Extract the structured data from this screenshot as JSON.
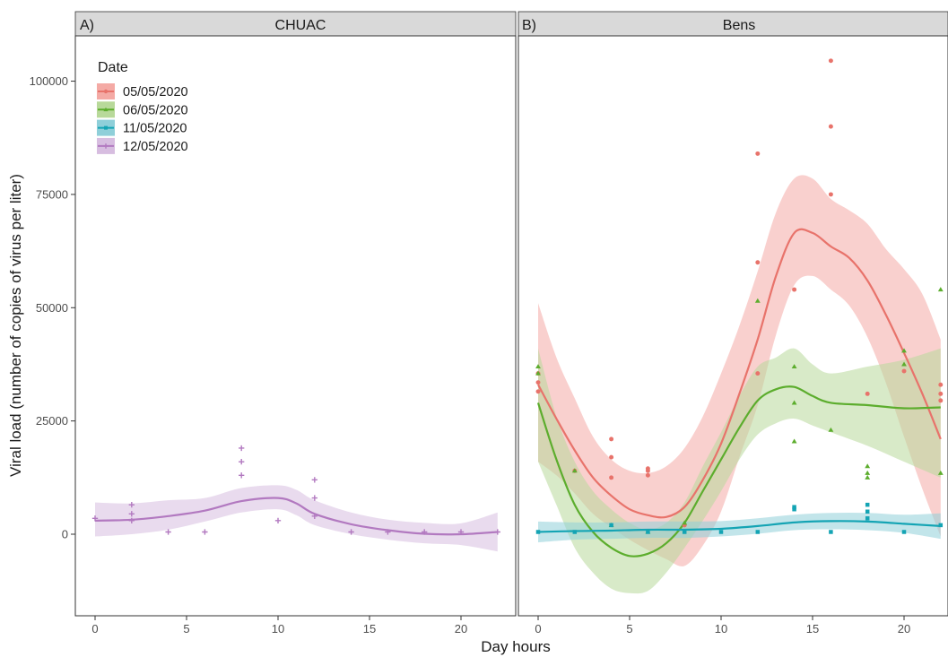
{
  "chart_data": {
    "type": "line",
    "xlabel": "Day hours",
    "ylabel": "Viral load (number of copies of virus per liter)",
    "xlim": [
      -1,
      22
    ],
    "ylim": [
      -18000,
      110000
    ],
    "x_ticks": [
      0,
      5,
      10,
      15,
      20
    ],
    "y_ticks": [
      0,
      25000,
      50000,
      75000,
      100000
    ],
    "y_tick_labels": [
      "0",
      "25000",
      "50000",
      "75000",
      "100000"
    ],
    "grid": false,
    "legend": {
      "title": "Date",
      "placement": "top-left",
      "entries": [
        {
          "label": "05/05/2020",
          "color": "#e8736b",
          "marker": "circle"
        },
        {
          "label": "06/05/2020",
          "color": "#5cad2d",
          "marker": "triangle"
        },
        {
          "label": "11/05/2020",
          "color": "#14a4b4",
          "marker": "square"
        },
        {
          "label": "12/05/2020",
          "color": "#b279c0",
          "marker": "plus"
        }
      ]
    },
    "panels": [
      {
        "tag": "A)",
        "title": "CHUAC",
        "series": [
          {
            "name": "12/05/2020",
            "color": "#b279c0",
            "fill": "#d7bde0",
            "marker": "plus",
            "points": [
              [
                0,
                3500
              ],
              [
                2,
                6500
              ],
              [
                2,
                4500
              ],
              [
                2,
                3000
              ],
              [
                4,
                500
              ],
              [
                6,
                500
              ],
              [
                8,
                19000
              ],
              [
                8,
                16000
              ],
              [
                8,
                13000
              ],
              [
                10,
                3000
              ],
              [
                12,
                12000
              ],
              [
                12,
                8000
              ],
              [
                12,
                4000
              ],
              [
                14,
                500
              ],
              [
                16,
                500
              ],
              [
                18,
                500
              ],
              [
                20,
                500
              ],
              [
                22,
                500
              ]
            ],
            "fit": [
              [
                0,
                3000
              ],
              [
                2,
                3200
              ],
              [
                4,
                4000
              ],
              [
                6,
                5200
              ],
              [
                8,
                7300
              ],
              [
                10,
                8000
              ],
              [
                11,
                6800
              ],
              [
                12,
                4500
              ],
              [
                14,
                2200
              ],
              [
                16,
                900
              ],
              [
                18,
                100
              ],
              [
                20,
                0
              ],
              [
                22,
                500
              ]
            ],
            "band": [
              [
                0,
                -500,
                7000
              ],
              [
                2,
                0,
                6800
              ],
              [
                4,
                1000,
                7500
              ],
              [
                6,
                2800,
                8000
              ],
              [
                8,
                4800,
                10200
              ],
              [
                10,
                5500,
                10800
              ],
              [
                11,
                4200,
                9800
              ],
              [
                12,
                2000,
                7500
              ],
              [
                14,
                0,
                4800
              ],
              [
                16,
                -1200,
                3200
              ],
              [
                18,
                -2000,
                2500
              ],
              [
                20,
                -2400,
                2400
              ],
              [
                22,
                -3800,
                4800
              ]
            ]
          }
        ]
      },
      {
        "tag": "B)",
        "title": "Bens",
        "series": [
          {
            "name": "05/05/2020",
            "color": "#e8736b",
            "fill": "#f4aaa5",
            "marker": "circle",
            "points": [
              [
                0,
                35500
              ],
              [
                0,
                33500
              ],
              [
                0,
                31500
              ],
              [
                2,
                14000
              ],
              [
                4,
                21000
              ],
              [
                4,
                17000
              ],
              [
                4,
                12500
              ],
              [
                6,
                14500
              ],
              [
                6,
                14000
              ],
              [
                6,
                13000
              ],
              [
                8,
                2000
              ],
              [
                12,
                84000
              ],
              [
                12,
                60000
              ],
              [
                12,
                35500
              ],
              [
                14,
                54000
              ],
              [
                16,
                104500
              ],
              [
                16,
                90000
              ],
              [
                16,
                75000
              ],
              [
                18,
                31000
              ],
              [
                20,
                36000
              ],
              [
                22,
                33000
              ],
              [
                22,
                31000
              ],
              [
                22,
                29500
              ]
            ],
            "fit": [
              [
                0,
                33000
              ],
              [
                1,
                25500
              ],
              [
                2,
                18500
              ],
              [
                3,
                12500
              ],
              [
                4,
                8500
              ],
              [
                5,
                5500
              ],
              [
                6,
                4200
              ],
              [
                7,
                3800
              ],
              [
                8,
                6000
              ],
              [
                9,
                12000
              ],
              [
                10,
                20000
              ],
              [
                11,
                31000
              ],
              [
                12,
                43000
              ],
              [
                13,
                57000
              ],
              [
                14,
                66500
              ],
              [
                15,
                66500
              ],
              [
                16,
                63500
              ],
              [
                17,
                61000
              ],
              [
                18,
                56000
              ],
              [
                19,
                48500
              ],
              [
                20,
                40000
              ],
              [
                21,
                31000
              ],
              [
                22,
                21000
              ]
            ],
            "band": [
              [
                0,
                16000,
                51000
              ],
              [
                1,
                13000,
                39000
              ],
              [
                2,
                9000,
                30000
              ],
              [
                3,
                4500,
                21500
              ],
              [
                4,
                1500,
                16500
              ],
              [
                5,
                -1200,
                14000
              ],
              [
                6,
                -3500,
                13500
              ],
              [
                7,
                -5500,
                15000
              ],
              [
                8,
                -7000,
                19000
              ],
              [
                9,
                -2500,
                26000
              ],
              [
                10,
                5000,
                35500
              ],
              [
                11,
                17000,
                46000
              ],
              [
                12,
                28500,
                58000
              ],
              [
                13,
                44000,
                71000
              ],
              [
                14,
                55000,
                78500
              ],
              [
                15,
                57000,
                78500
              ],
              [
                16,
                54000,
                74000
              ],
              [
                17,
                50500,
                71500
              ],
              [
                18,
                43500,
                68500
              ],
              [
                19,
                33500,
                63000
              ],
              [
                20,
                21500,
                58500
              ],
              [
                21,
                10000,
                53000
              ],
              [
                22,
                -500,
                43000
              ]
            ]
          },
          {
            "name": "06/05/2020",
            "color": "#5cad2d",
            "fill": "#b8d99a",
            "marker": "triangle",
            "points": [
              [
                0,
                37000
              ],
              [
                0,
                35500
              ],
              [
                2,
                14000
              ],
              [
                4,
                2000
              ],
              [
                6,
                500
              ],
              [
                8,
                2500
              ],
              [
                12,
                51500
              ],
              [
                14,
                37000
              ],
              [
                14,
                29000
              ],
              [
                14,
                20500
              ],
              [
                16,
                23000
              ],
              [
                18,
                15000
              ],
              [
                18,
                13500
              ],
              [
                18,
                12500
              ],
              [
                20,
                40500
              ],
              [
                20,
                37500
              ],
              [
                22,
                54000
              ],
              [
                22,
                13500
              ]
            ],
            "fit": [
              [
                0,
                29000
              ],
              [
                1,
                16500
              ],
              [
                2,
                6500
              ],
              [
                3,
                500
              ],
              [
                4,
                -3000
              ],
              [
                5,
                -4800
              ],
              [
                6,
                -4300
              ],
              [
                7,
                -2000
              ],
              [
                8,
                2500
              ],
              [
                9,
                9500
              ],
              [
                10,
                16500
              ],
              [
                11,
                23500
              ],
              [
                12,
                29500
              ],
              [
                13,
                32000
              ],
              [
                14,
                32500
              ],
              [
                15,
                30500
              ],
              [
                16,
                29000
              ],
              [
                18,
                28500
              ],
              [
                20,
                27800
              ],
              [
                22,
                28000
              ]
            ],
            "band": [
              [
                0,
                16000,
                41000
              ],
              [
                1,
                6500,
                26000
              ],
              [
                2,
                -3000,
                16000
              ],
              [
                3,
                -8500,
                9500
              ],
              [
                4,
                -12000,
                5500
              ],
              [
                5,
                -13000,
                2500
              ],
              [
                6,
                -12500,
                1000
              ],
              [
                7,
                -8500,
                2500
              ],
              [
                8,
                -3000,
                7000
              ],
              [
                9,
                3000,
                15000
              ],
              [
                10,
                9500,
                22500
              ],
              [
                11,
                16500,
                30500
              ],
              [
                12,
                22000,
                37000
              ],
              [
                13,
                24500,
                39000
              ],
              [
                14,
                25500,
                41000
              ],
              [
                15,
                24000,
                37500
              ],
              [
                16,
                22500,
                35500
              ],
              [
                18,
                19500,
                37000
              ],
              [
                20,
                16000,
                38500
              ],
              [
                22,
                12500,
                41000
              ]
            ]
          },
          {
            "name": "11/05/2020",
            "color": "#14a4b4",
            "fill": "#8fcfd9",
            "marker": "square",
            "points": [
              [
                0,
                500
              ],
              [
                2,
                500
              ],
              [
                4,
                2000
              ],
              [
                6,
                500
              ],
              [
                8,
                500
              ],
              [
                10,
                500
              ],
              [
                12,
                500
              ],
              [
                14,
                6000
              ],
              [
                14,
                5500
              ],
              [
                16,
                500
              ],
              [
                18,
                6500
              ],
              [
                18,
                5000
              ],
              [
                18,
                3500
              ],
              [
                20,
                500
              ],
              [
                22,
                2000
              ]
            ],
            "fit": [
              [
                0,
                500
              ],
              [
                2,
                700
              ],
              [
                4,
                800
              ],
              [
                6,
                1000
              ],
              [
                8,
                1000
              ],
              [
                10,
                1200
              ],
              [
                12,
                1800
              ],
              [
                14,
                2600
              ],
              [
                16,
                2900
              ],
              [
                18,
                2800
              ],
              [
                20,
                2300
              ],
              [
                22,
                1800
              ]
            ],
            "band": [
              [
                0,
                -1800,
                2800
              ],
              [
                2,
                -1200,
                2600
              ],
              [
                4,
                -1000,
                2600
              ],
              [
                6,
                -800,
                2800
              ],
              [
                8,
                -800,
                2800
              ],
              [
                10,
                -500,
                2900
              ],
              [
                12,
                100,
                3500
              ],
              [
                14,
                900,
                4300
              ],
              [
                16,
                1100,
                4700
              ],
              [
                18,
                900,
                4700
              ],
              [
                20,
                300,
                4300
              ],
              [
                22,
                -1000,
                4600
              ]
            ]
          }
        ]
      }
    ]
  }
}
